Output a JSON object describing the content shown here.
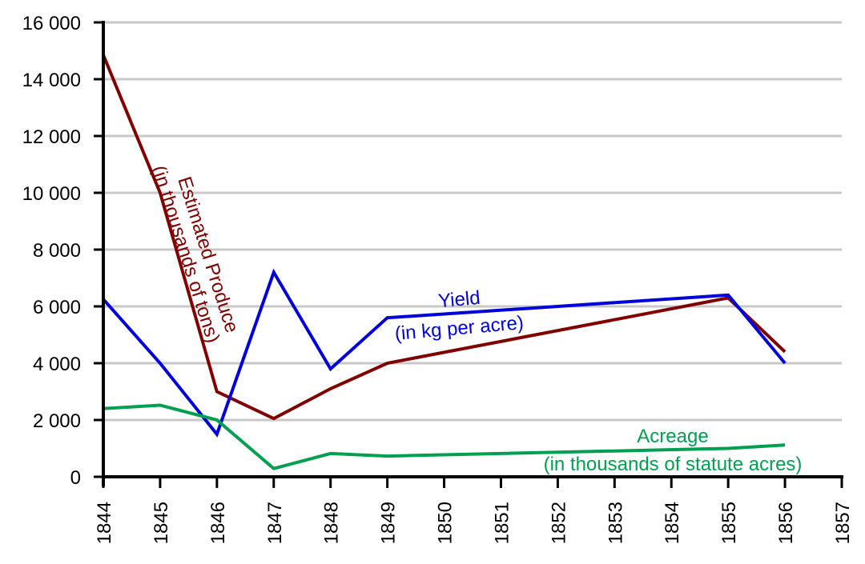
{
  "chart_data": {
    "type": "line",
    "title": "",
    "xlabel": "",
    "ylabel": "",
    "xlim": [
      1844,
      1857
    ],
    "ylim": [
      0,
      16000
    ],
    "x_ticks": [
      "1844",
      "1845",
      "1846",
      "1847",
      "1848",
      "1849",
      "1850",
      "1851",
      "1852",
      "1853",
      "1854",
      "1855",
      "1856",
      "1857"
    ],
    "y_ticks": [
      "0",
      "2 000",
      "4 000",
      "6 000",
      "8 000",
      "10 000",
      "12 000",
      "14 000",
      "16 000"
    ],
    "grid": true,
    "series": [
      {
        "name": "Estimated Produce (in thousands of tons)",
        "label_lines": [
          "Estimated Produce",
          "(in thousands of tons)"
        ],
        "color": "#800000",
        "x": [
          1844,
          1845,
          1846,
          1847,
          1848,
          1849,
          1855,
          1856
        ],
        "values": [
          14850,
          10000,
          3000,
          2050,
          3100,
          4000,
          6300,
          4400
        ]
      },
      {
        "name": "Yield (in kg per acre)",
        "label_lines": [
          "Yield",
          "(in kg per acre)"
        ],
        "color": "#0000dd",
        "x": [
          1844,
          1845,
          1846,
          1847,
          1848,
          1849,
          1855,
          1856
        ],
        "values": [
          6250,
          4000,
          1500,
          7200,
          3800,
          5600,
          6400,
          4000
        ]
      },
      {
        "name": "Acreage (in thousands of statute acres)",
        "label_lines": [
          "Acreage",
          "(in thousands of statute acres)"
        ],
        "color": "#00a050",
        "x": [
          1844,
          1845,
          1846,
          1847,
          1848,
          1849,
          1855,
          1856
        ],
        "values": [
          2400,
          2520,
          2000,
          290,
          820,
          730,
          1000,
          1120
        ]
      }
    ]
  }
}
